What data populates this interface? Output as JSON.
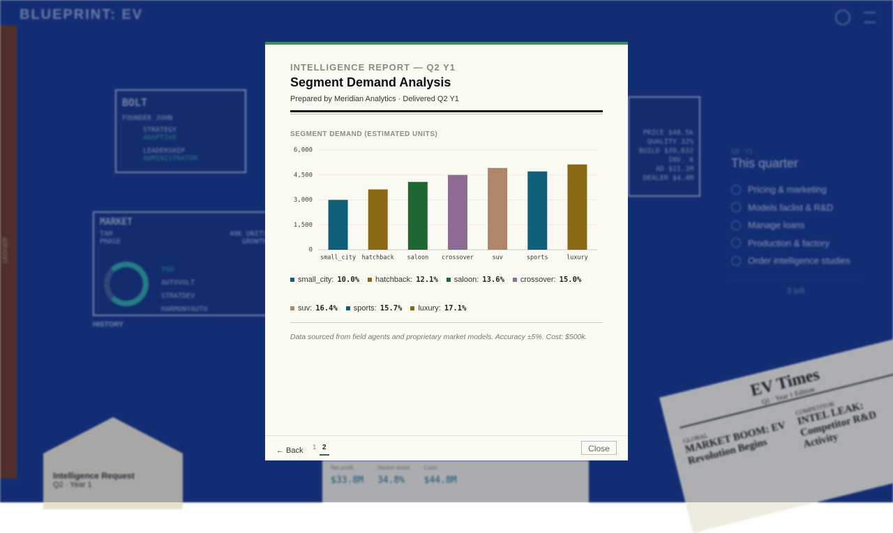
{
  "background": {
    "brand": "BLUEPRINT: EV",
    "ledger": "LEDGER",
    "company_card": {
      "name": "BOLT",
      "founder": "FOUNDER JOHN",
      "strategy": "STRATEGY",
      "strategy_value": "ADAPTIVE",
      "leadership": "LEADERSHIP",
      "leadership_value": "ADMINISTRATOR"
    },
    "product_panel": [
      "PRICE $48.5k",
      "QUALITY 32%",
      "BUILD $39,832",
      "INV. 0",
      "AD $11.1M",
      "DEALER $4.4M"
    ],
    "market_panel": {
      "title": "MARKET",
      "tam": "TAM",
      "tam_value": "40K UNITS",
      "phase": "PHASE",
      "phase_value": "GROWTH",
      "rivals": [
        "YOU",
        "AUTOVOLT",
        "STRATDEV",
        "HARMONYAUTO"
      ],
      "history": "HISTORY"
    },
    "quarter": {
      "kicker": "Q2 · Y1",
      "title": "This quarter",
      "items": [
        "Pricing & marketing",
        "Models faclist & R&D",
        "Manage loans",
        "Production & factory",
        "Order intelligence studies"
      ],
      "remaining": "3 left"
    },
    "envelope": {
      "title": "Intelligence Request",
      "subtitle": "Q2 · Year 1"
    },
    "stats": {
      "labels": [
        "Net profit",
        "Market share",
        "Cash"
      ],
      "values": [
        "$33.8M",
        "34.8%",
        "$44.8M"
      ]
    },
    "newspaper": {
      "masthead": "EV Times",
      "edition": "Q1 · Year 1 Edition",
      "headline_left": "MARKET BOOM: EV Revolution Begins",
      "headline_right": "INTEL LEAK: Competitor R&D Activity",
      "section_left": "GLOBAL",
      "section_right": "COMPETITOR"
    }
  },
  "modal": {
    "kicker": "INTELLIGENCE REPORT — Q2 Y1",
    "title": "Segment Demand Analysis",
    "byline": "Prepared by Meridian Analytics · Delivered Q2 Y1",
    "footnote": "Data sourced from field agents and proprietary market models. Accuracy ±5%. Cost: $500k.",
    "back": "← Back",
    "pages": [
      "1",
      "2"
    ],
    "close": "Close"
  },
  "chart_data": {
    "type": "bar",
    "title": "SEGMENT DEMAND (ESTIMATED UNITS)",
    "categories": [
      "small_city",
      "hatchback",
      "saloon",
      "crossover",
      "suv",
      "sports",
      "luxury"
    ],
    "values": [
      3000,
      3630,
      4080,
      4500,
      4920,
      4710,
      5130
    ],
    "colors": [
      "#0f5f78",
      "#8b6914",
      "#1e6634",
      "#8e6b94",
      "#b0866a",
      "#11607a",
      "#8b6914"
    ],
    "shares": [
      10.0,
      12.1,
      13.6,
      15.0,
      16.4,
      15.7,
      17.1
    ],
    "share_labels": [
      "10.0%",
      "12.1%",
      "13.6%",
      "15.0%",
      "16.4%",
      "15.7%",
      "17.1%"
    ],
    "ylim": [
      0,
      6000
    ],
    "yticks": [
      0,
      {
        "value": 1500,
        "label": "1,500"
      },
      {
        "value": 3000,
        "label": "3,000"
      },
      {
        "value": 4500,
        "label": "4,500"
      },
      {
        "value": 6000,
        "label": "6,000"
      }
    ],
    "grid": true
  }
}
